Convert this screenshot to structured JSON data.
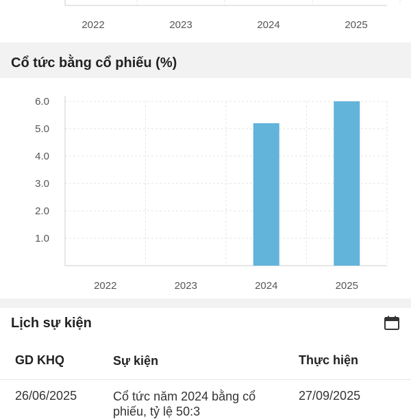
{
  "top_chart": {
    "x_labels": [
      "2022",
      "2023",
      "2024",
      "2025"
    ]
  },
  "stock_dividend_section": {
    "title": "Cổ tức bằng cổ phiếu (%)"
  },
  "chart_data": {
    "type": "bar",
    "title": "Cổ tức bằng cổ phiếu (%)",
    "categories": [
      "2022",
      "2023",
      "2024",
      "2025"
    ],
    "values": [
      0,
      0,
      5.2,
      6.0
    ],
    "y_ticks": [
      "1.0",
      "2.0",
      "3.0",
      "4.0",
      "5.0",
      "6.0"
    ],
    "ylim": [
      0,
      6.0
    ],
    "grid": true,
    "bar_color": "#62b4da"
  },
  "events": {
    "title": "Lịch sự kiện",
    "calendar_icon": "calendar-icon",
    "columns": [
      "GD KHQ",
      "Sự kiện",
      "Thực hiện"
    ],
    "rows": [
      {
        "ex_date": "26/06/2025",
        "event": "Cổ tức năm 2024 bằng cổ phiếu, tỷ lệ 50:3",
        "exec_date": "27/09/2025"
      }
    ]
  }
}
